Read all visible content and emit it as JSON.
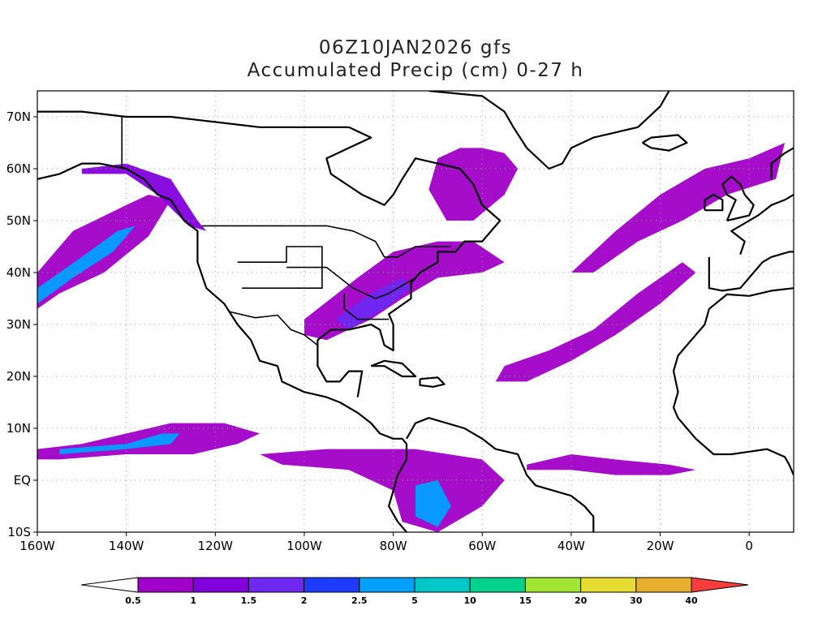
{
  "header": {
    "title_line1": "06Z10JAN2026 gfs",
    "title_line2": "Accumulated Precip (cm) 0-27 h"
  },
  "map": {
    "projection": "latlon",
    "lon_range": [
      -160,
      10
    ],
    "lat_range": [
      -10,
      75
    ],
    "lon_labels": [
      {
        "lon": -160,
        "text": "160W"
      },
      {
        "lon": -140,
        "text": "140W"
      },
      {
        "lon": -120,
        "text": "120W"
      },
      {
        "lon": -100,
        "text": "100W"
      },
      {
        "lon": -80,
        "text": "80W"
      },
      {
        "lon": -60,
        "text": "60W"
      },
      {
        "lon": -40,
        "text": "40W"
      },
      {
        "lon": -20,
        "text": "20W"
      },
      {
        "lon": 0,
        "text": "0"
      }
    ],
    "lat_labels": [
      {
        "lat": 70,
        "text": "70N"
      },
      {
        "lat": 60,
        "text": "60N"
      },
      {
        "lat": 50,
        "text": "50N"
      },
      {
        "lat": 40,
        "text": "40N"
      },
      {
        "lat": 30,
        "text": "30N"
      },
      {
        "lat": 20,
        "text": "20N"
      },
      {
        "lat": 10,
        "text": "10N"
      },
      {
        "lat": 0,
        "text": "EQ"
      },
      {
        "lat": -10,
        "text": "10S"
      }
    ],
    "gridlines": true
  },
  "colorbar": {
    "labels": [
      "0.5",
      "1",
      "1.5",
      "2",
      "2.5",
      "5",
      "10",
      "15",
      "20",
      "30",
      "40"
    ],
    "colors": [
      "#a000c8",
      "#8200dc",
      "#6e28f0",
      "#1e3cff",
      "#00a0ff",
      "#00c8c8",
      "#00d28c",
      "#a0e632",
      "#e6dc32",
      "#e6af2d",
      "#f08228",
      "#fa3c3c"
    ],
    "below_color": "#ffffff"
  },
  "chart_data": {
    "type": "heatmap",
    "title": "06Z10JAN2026 gfs / Accumulated Precip (cm) 0-27 h",
    "levels": [
      0.5,
      1,
      1.5,
      2,
      2.5,
      5,
      10,
      15,
      20,
      30,
      40
    ],
    "units": "cm",
    "regions": [
      {
        "lon": [
          [
            -160,
            40
          ],
          [
            -152,
            48
          ],
          [
            -140,
            53
          ],
          [
            -135,
            55
          ],
          [
            -130,
            54
          ],
          [
            -135,
            47
          ],
          [
            -145,
            40
          ],
          [
            -155,
            36
          ],
          [
            -160,
            33
          ]
        ],
        "level": 0.5
      },
      {
        "lon": [
          [
            -160,
            37
          ],
          [
            -150,
            43
          ],
          [
            -142,
            48
          ],
          [
            -138,
            49
          ],
          [
            -143,
            44
          ],
          [
            -152,
            39
          ],
          [
            -160,
            34
          ]
        ],
        "level": 2.5
      },
      {
        "lon": [
          [
            -160,
            6
          ],
          [
            -150,
            7
          ],
          [
            -140,
            9
          ],
          [
            -130,
            11
          ],
          [
            -118,
            11
          ],
          [
            -110,
            9
          ],
          [
            -115,
            7
          ],
          [
            -125,
            5
          ],
          [
            -140,
            5
          ],
          [
            -155,
            4
          ],
          [
            -160,
            4
          ]
        ],
        "level": 0.5
      },
      {
        "lon": [
          [
            -155,
            6
          ],
          [
            -140,
            7
          ],
          [
            -132,
            9
          ],
          [
            -128,
            9
          ],
          [
            -130,
            7
          ],
          [
            -140,
            6
          ],
          [
            -155,
            5
          ]
        ],
        "level": 2.5
      },
      {
        "lon": [
          [
            -150,
            60
          ],
          [
            -140,
            61
          ],
          [
            -130,
            58
          ],
          [
            -124,
            50
          ],
          [
            -122,
            48
          ],
          [
            -126,
            49
          ],
          [
            -133,
            55
          ],
          [
            -140,
            59
          ],
          [
            -150,
            59
          ]
        ],
        "level": 1
      },
      {
        "lon": [
          [
            -100,
            31
          ],
          [
            -88,
            39
          ],
          [
            -80,
            44
          ],
          [
            -70,
            46
          ],
          [
            -62,
            46
          ],
          [
            -55,
            42
          ],
          [
            -60,
            40
          ],
          [
            -70,
            39
          ],
          [
            -78,
            35
          ],
          [
            -85,
            31
          ],
          [
            -95,
            27
          ],
          [
            -100,
            28
          ]
        ],
        "level": 0.5
      },
      {
        "lon": [
          [
            -93,
            31
          ],
          [
            -85,
            36
          ],
          [
            -78,
            39
          ],
          [
            -76,
            37
          ],
          [
            -82,
            33
          ],
          [
            -90,
            29
          ]
        ],
        "level": 1.5
      },
      {
        "lon": [
          [
            -60,
            64
          ],
          [
            -55,
            63
          ],
          [
            -52,
            60
          ],
          [
            -55,
            55
          ],
          [
            -62,
            50
          ],
          [
            -68,
            50
          ],
          [
            -72,
            56
          ],
          [
            -70,
            62
          ],
          [
            -65,
            64
          ]
        ],
        "level": 0.5
      },
      {
        "lon": [
          [
            -40,
            40
          ],
          [
            -30,
            48
          ],
          [
            -20,
            55
          ],
          [
            -10,
            60
          ],
          [
            0,
            62
          ],
          [
            8,
            65
          ],
          [
            6,
            58
          ],
          [
            -5,
            55
          ],
          [
            -15,
            50
          ],
          [
            -25,
            46
          ],
          [
            -35,
            40
          ]
        ],
        "level": 0.5
      },
      {
        "lon": [
          [
            -55,
            22
          ],
          [
            -45,
            25
          ],
          [
            -35,
            29
          ],
          [
            -25,
            36
          ],
          [
            -15,
            42
          ],
          [
            -12,
            40
          ],
          [
            -20,
            34
          ],
          [
            -30,
            28
          ],
          [
            -40,
            23
          ],
          [
            -50,
            19
          ],
          [
            -57,
            19
          ]
        ],
        "level": 0.5
      },
      {
        "lon": [
          [
            -50,
            3
          ],
          [
            -40,
            5
          ],
          [
            -30,
            4
          ],
          [
            -18,
            3
          ],
          [
            -12,
            2
          ],
          [
            -18,
            1
          ],
          [
            -30,
            1
          ],
          [
            -40,
            2
          ],
          [
            -50,
            2
          ]
        ],
        "level": 0.5
      },
      {
        "lon": [
          [
            -110,
            5
          ],
          [
            -95,
            6
          ],
          [
            -85,
            6
          ],
          [
            -75,
            6
          ],
          [
            -60,
            4
          ],
          [
            -55,
            0
          ],
          [
            -60,
            -5
          ],
          [
            -70,
            -10
          ],
          [
            -78,
            -8
          ],
          [
            -80,
            -2
          ],
          [
            -90,
            2
          ],
          [
            -105,
            3
          ]
        ],
        "level": 0.5
      },
      {
        "lon": [
          [
            -75,
            -1
          ],
          [
            -70,
            0
          ],
          [
            -67,
            -5
          ],
          [
            -70,
            -9
          ],
          [
            -75,
            -7
          ]
        ],
        "level": 2.5
      }
    ]
  }
}
